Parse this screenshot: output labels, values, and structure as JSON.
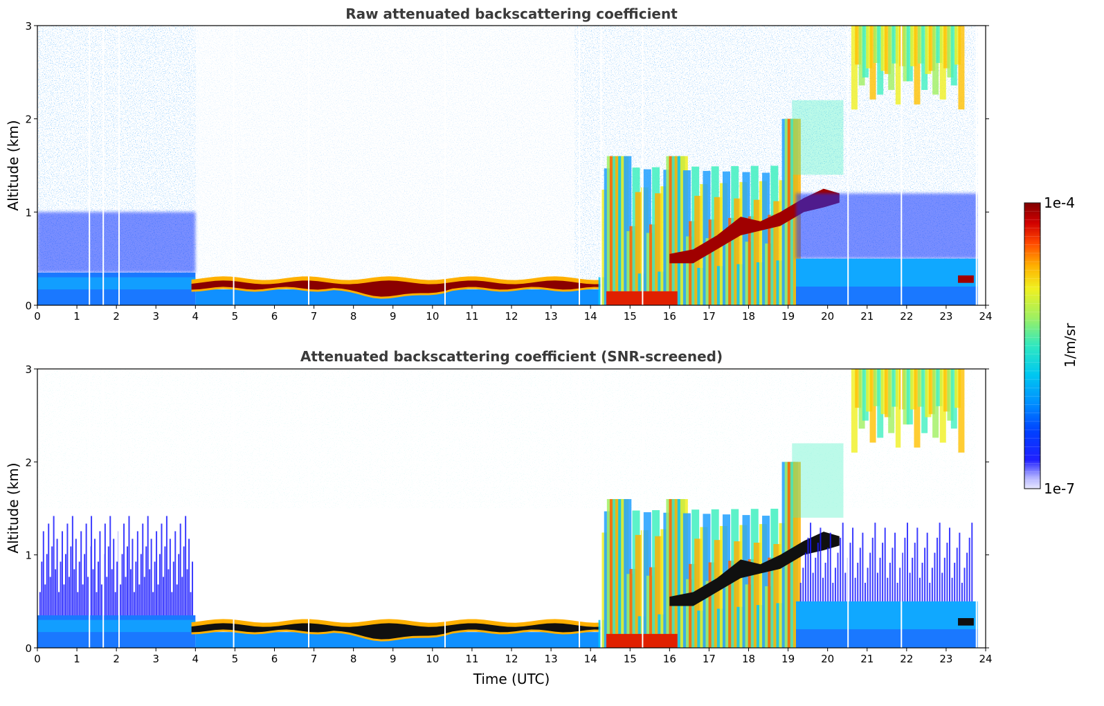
{
  "chart_data": [
    {
      "type": "heatmap",
      "title": "Raw attenuated backscattering coefficient",
      "xlabel": "",
      "ylabel": "Altitude (km)",
      "xlim": [
        0,
        24
      ],
      "ylim": [
        0,
        3
      ],
      "xticks": [
        "0",
        "1",
        "2",
        "3",
        "4",
        "5",
        "6",
        "7",
        "8",
        "9",
        "10",
        "11",
        "12",
        "13",
        "14",
        "15",
        "16",
        "17",
        "18",
        "19",
        "20",
        "21",
        "22",
        "23",
        "24"
      ],
      "yticks": [
        "0",
        "1",
        "2",
        "3"
      ],
      "features": [
        {
          "name": "boundary layer aerosol",
          "t_start": 0,
          "t_end": 4,
          "alt_bottom": 0.0,
          "alt_top": 0.35
        },
        {
          "name": "stratocumulus layer",
          "t_start": 4,
          "t_end": 14.3,
          "alt_bottom": 0.1,
          "alt_top": 0.28
        },
        {
          "name": "precipitation / convective cells",
          "t_start": 14.2,
          "t_end": 19.2,
          "alt_bottom": 0.0,
          "alt_top": 2.0
        },
        {
          "name": "elevated cloud layer",
          "t_start": 16,
          "t_end": 20.3,
          "alt_bottom": 0.45,
          "alt_top": 1.3
        },
        {
          "name": "upper cloud",
          "t_start": 20.5,
          "t_end": 23.5,
          "alt_bottom": 2.0,
          "alt_top": 3.0
        },
        {
          "name": "boundary layer aerosol (evening)",
          "t_start": 19.2,
          "t_end": 23.8,
          "alt_bottom": 0.0,
          "alt_top": 0.5
        }
      ]
    },
    {
      "type": "heatmap",
      "title": "Attenuated backscattering coefficient (SNR-screened)",
      "xlabel": "Time (UTC)",
      "ylabel": "Altitude (km)",
      "xlim": [
        0,
        24
      ],
      "ylim": [
        0,
        3
      ],
      "xticks": [
        "0",
        "1",
        "2",
        "3",
        "4",
        "5",
        "6",
        "7",
        "8",
        "9",
        "10",
        "11",
        "12",
        "13",
        "14",
        "15",
        "16",
        "17",
        "18",
        "19",
        "20",
        "21",
        "22",
        "23",
        "24"
      ],
      "yticks": [
        "0",
        "1",
        "2",
        "3"
      ]
    }
  ],
  "colorbar": {
    "label": "1/m/sr",
    "min_label": "1e-7",
    "max_label": "1e-4",
    "colors": [
      "#0000e8",
      "#0044ff",
      "#00a0ff",
      "#00d8f0",
      "#40f0c0",
      "#a0f080",
      "#f0f020",
      "#ffb000",
      "#ff5000",
      "#e00000",
      "#800000"
    ]
  }
}
